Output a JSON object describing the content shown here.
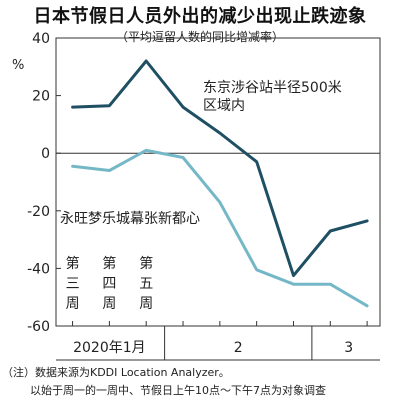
{
  "header": {
    "title": "日本节假日人员外出的减少出现止跌迹象",
    "subtitle": "（平均逗留人数的同比增减率）",
    "unit": "%"
  },
  "notes": {
    "line1": "（注）数据来源为KDDI Location Analyzer。",
    "line2": "以始于周一的一周中、节假日上午10点～下午7点为对象调查"
  },
  "chart_data": {
    "type": "line",
    "ylim": [
      -60,
      40
    ],
    "yticks": [
      40,
      20,
      0,
      -20,
      -40,
      -60
    ],
    "grid": false,
    "zero_line": true,
    "x": [
      1,
      2,
      3,
      4,
      5,
      6,
      7,
      8,
      9
    ],
    "month_labels": [
      {
        "label": "2020年1月",
        "x_center": 2
      },
      {
        "label": "2",
        "x_center": 5.5
      },
      {
        "label": "3",
        "x_center": 8.5
      }
    ],
    "month_boundaries": [
      3.5,
      7.5
    ],
    "week_annotation": {
      "labels": [
        {
          "x": 1,
          "text": [
            "第",
            "三",
            "周"
          ]
        },
        {
          "x": 2,
          "text": [
            "第",
            "四",
            "周"
          ]
        },
        {
          "x": 3,
          "text": [
            "第",
            "五",
            "周"
          ]
        }
      ]
    },
    "series": [
      {
        "name": "东京涉谷站半径500米区域内",
        "label_lines": [
          "东京涉谷站半径500米",
          "区域内"
        ],
        "color": "#1f4f63",
        "values": [
          16,
          16.5,
          32,
          16,
          7,
          -3,
          -42.5,
          -27,
          -23.5
        ]
      },
      {
        "name": "永旺梦乐城幕张新都心",
        "label_lines": [
          "永旺梦乐城幕张新都心"
        ],
        "color": "#74b8c7",
        "values": [
          -4.5,
          -6,
          1,
          -1.5,
          -17,
          -40.5,
          -45.5,
          -45.5,
          -53
        ]
      }
    ]
  }
}
